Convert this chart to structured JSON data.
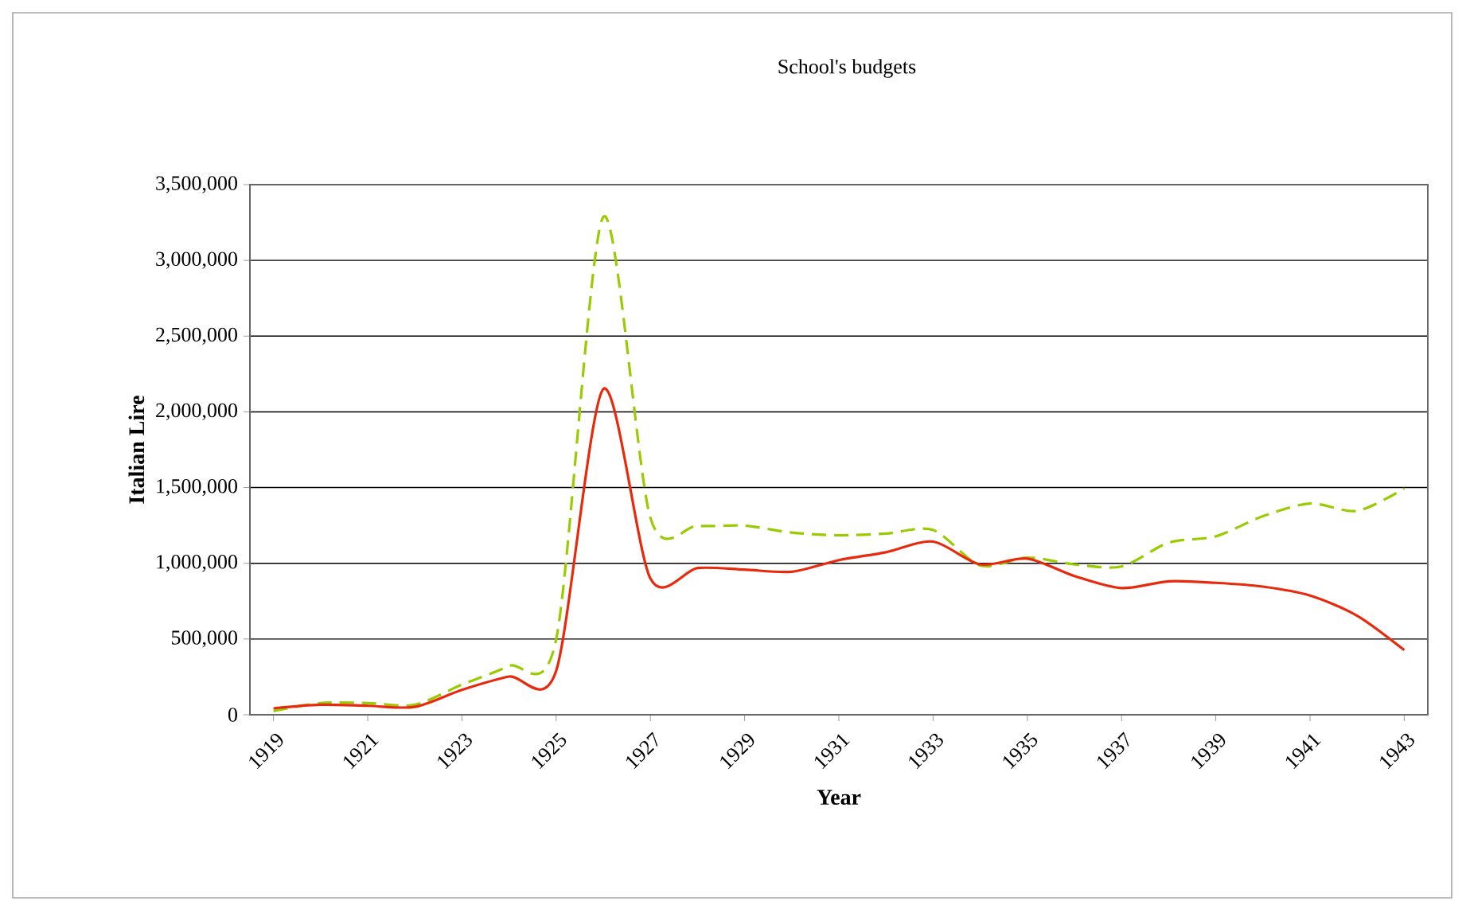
{
  "chart_data": {
    "type": "line",
    "title": "School's budgets",
    "xlabel": "Year",
    "ylabel": "Italian Lire",
    "x": [
      1919,
      1920,
      1921,
      1922,
      1923,
      1924,
      1925,
      1926,
      1927,
      1928,
      1929,
      1930,
      1931,
      1932,
      1933,
      1934,
      1935,
      1936,
      1937,
      1938,
      1939,
      1940,
      1941,
      1942,
      1943
    ],
    "series": [
      {
        "color": "#99cc00",
        "line_style": "dashed",
        "values": [
          24000,
          77000,
          77000,
          66000,
          199000,
          322000,
          497000,
          3287000,
          1300000,
          1248000,
          1248000,
          1203000,
          1185000,
          1196000,
          1220000,
          986000,
          1038000,
          993000,
          979000,
          1136000,
          1178000,
          1311000,
          1395000,
          1346000,
          1493000
        ]
      },
      {
        "color": "#e8290c",
        "line_style": "solid",
        "values": [
          42000,
          66000,
          59000,
          52000,
          164000,
          252000,
          290000,
          2150000,
          900000,
          969000,
          958000,
          944000,
          1021000,
          1073000,
          1143000,
          993000,
          1031000,
          916000,
          836000,
          881000,
          871000,
          846000,
          787000,
          654000,
          427000
        ]
      }
    ],
    "xlim": [
      1918.5,
      1943.5
    ],
    "ylim": [
      0,
      3500000
    ],
    "xticks": [
      1919,
      1921,
      1923,
      1925,
      1927,
      1929,
      1931,
      1933,
      1935,
      1937,
      1939,
      1941,
      1943
    ],
    "yticks": [
      {
        "value": 0,
        "label": "0"
      },
      {
        "value": 500000,
        "label": "500,000"
      },
      {
        "value": 1000000,
        "label": "1,000,000"
      },
      {
        "value": 1500000,
        "label": "1,500,000"
      },
      {
        "value": 2000000,
        "label": "2,000,000"
      },
      {
        "value": 2500000,
        "label": "2,500,000"
      },
      {
        "value": 3000000,
        "label": "3,000,000"
      },
      {
        "value": 3500000,
        "label": "3,500,000"
      }
    ],
    "grid": "y"
  }
}
